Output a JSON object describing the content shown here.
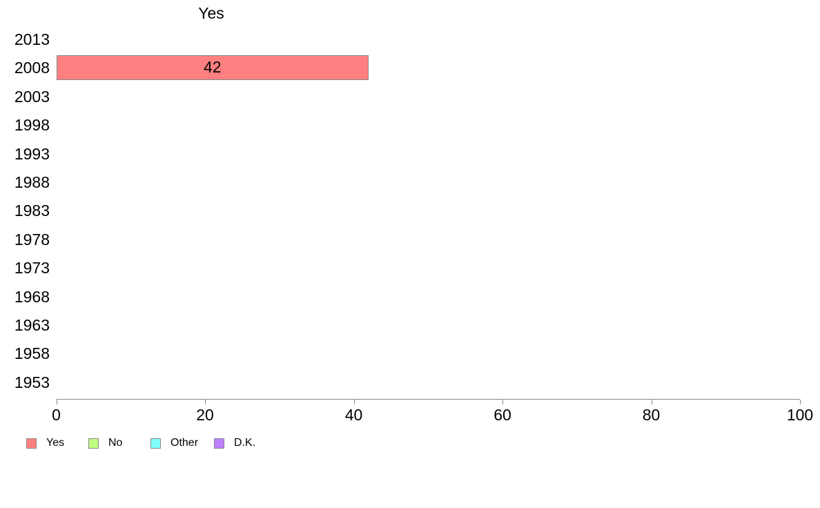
{
  "chart_data": {
    "type": "bar",
    "orientation": "horizontal",
    "title": "Yes",
    "categories": [
      "2013",
      "2008",
      "2003",
      "1998",
      "1993",
      "1988",
      "1983",
      "1978",
      "1973",
      "1968",
      "1963",
      "1958",
      "1953"
    ],
    "series": [
      {
        "name": "Yes",
        "color": "#FF8080",
        "values": [
          null,
          42,
          null,
          null,
          null,
          null,
          null,
          null,
          null,
          null,
          null,
          null,
          null
        ]
      }
    ],
    "bar_value_labels": true,
    "xlabel": "",
    "ylabel": "",
    "xlim": [
      0,
      100
    ],
    "x_ticks": [
      0,
      20,
      40,
      60,
      80,
      100
    ],
    "grid": false,
    "legend_position": "bottom-left",
    "legend": [
      {
        "label": "Yes",
        "color": "#FF8080"
      },
      {
        "label": "No",
        "color": "#BFFF80"
      },
      {
        "label": "Other",
        "color": "#80FFFF"
      },
      {
        "label": "D.K.",
        "color": "#BF80FF"
      }
    ],
    "axis_color": "#888888",
    "text_color": "#000000",
    "background_color": "#FFFFFF"
  }
}
